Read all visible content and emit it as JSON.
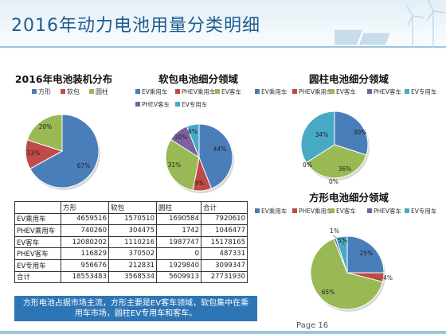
{
  "slide": {
    "title": "2016年动力电池用量分类明细",
    "caption": "方形电池占据市场主流，方形主要是EV客车领域，软包集中在乘用车市场，圆柱EV专用车和客车。",
    "page": "Page 16"
  },
  "chart_data": [
    {
      "type": "pie",
      "title": "2016年电池装机分布",
      "categories": [
        "方形",
        "软包",
        "圆柱"
      ],
      "values": [
        67,
        13,
        20
      ],
      "labels": [
        "67%",
        "13%",
        "20%"
      ],
      "colors": [
        "#4a7ebb",
        "#be4b48",
        "#98b954"
      ],
      "legend": "top"
    },
    {
      "type": "pie",
      "title": "软包电池细分领域",
      "categories": [
        "EV乘用车",
        "PHEV乘用车",
        "EV客车",
        "PHEV客车",
        "EV专用车"
      ],
      "values": [
        44,
        9,
        31,
        10,
        6
      ],
      "labels": [
        "44%",
        "9%",
        "31%",
        "10%",
        "6%"
      ],
      "colors": [
        "#4a7ebb",
        "#be4b48",
        "#98b954",
        "#7d60a0",
        "#46aac5"
      ],
      "legend": "top"
    },
    {
      "type": "pie",
      "title": "圆柱电池细分领域",
      "categories": [
        "EV乘用车",
        "PHEV乘用车",
        "EV客车",
        "PHEV客车",
        "EV专用车"
      ],
      "values": [
        30,
        0,
        36,
        0,
        34
      ],
      "labels": [
        "30%",
        "0%",
        "36%",
        "0%",
        "34%"
      ],
      "colors": [
        "#4a7ebb",
        "#be4b48",
        "#98b954",
        "#7d60a0",
        "#46aac5"
      ],
      "legend": "top"
    },
    {
      "type": "pie",
      "title": "方形电池细分领域",
      "categories": [
        "EV乘用车",
        "PHEV乘用车",
        "EV客车",
        "PHEV客车",
        "EV专用车"
      ],
      "values": [
        25,
        4,
        65,
        1,
        5
      ],
      "labels": [
        "25%",
        "4%",
        "65%",
        "1%",
        "5%"
      ],
      "colors": [
        "#4a7ebb",
        "#be4b48",
        "#98b954",
        "#7d60a0",
        "#46aac5"
      ],
      "legend": "top"
    },
    {
      "type": "table",
      "columns": [
        "",
        "方形",
        "软包",
        "圆柱",
        "合计"
      ],
      "rows": [
        [
          "EV乘用车",
          "4659516",
          "1570510",
          "1690584",
          "7920610"
        ],
        [
          "PHEV乘用车",
          "740260",
          "304475",
          "1742",
          "1046477"
        ],
        [
          "EV客车",
          "12080202",
          "1110216",
          "1987747",
          "15178165"
        ],
        [
          "PHEV客车",
          "116829",
          "370502",
          "0",
          "487331"
        ],
        [
          "EV专用车",
          "956676",
          "212831",
          "1929840",
          "3099347"
        ],
        [
          "合计",
          "18553483",
          "3568534",
          "5609913",
          "27731930"
        ]
      ]
    }
  ]
}
